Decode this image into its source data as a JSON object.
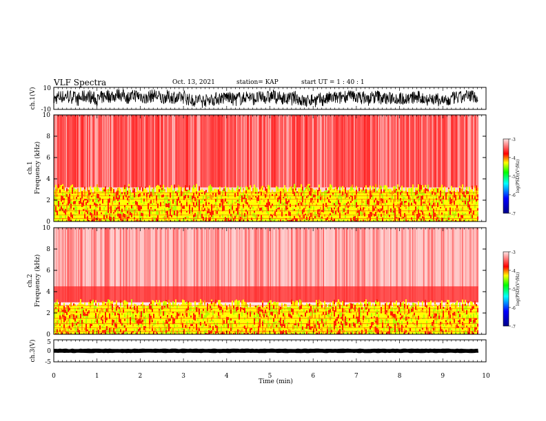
{
  "header": {
    "title": "VLF Spectra",
    "date": "Oct. 13, 2021",
    "station": "station= KAP",
    "start_ut": "start  UT  =   1 : 40 : 1"
  },
  "chart_data": [
    {
      "type": "line",
      "panel": "ch1-waveform",
      "ylabel": "ch.1(V)",
      "ylim": [
        -10,
        10
      ],
      "y_ticks": [
        "10",
        "-10"
      ],
      "xlim": [
        0,
        10
      ],
      "x_extent": [
        0,
        9.82
      ],
      "amplitude_range": [
        -9,
        8
      ]
    },
    {
      "type": "heatmap",
      "panel": "ch1-spectrogram",
      "ylabel_line1": "ch.1",
      "ylabel_line2": "Frequency (kHz)",
      "ylim": [
        0,
        10
      ],
      "y_ticks": [
        "0",
        "2",
        "4",
        "6",
        "8",
        "10"
      ],
      "xlim": [
        0,
        10
      ],
      "x_extent": [
        0,
        9.82
      ],
      "bands": [
        {
          "from_khz": 0,
          "to_khz": 3.2,
          "dominant": "yellow-green"
        },
        {
          "from_khz": 3.2,
          "to_khz": 10,
          "dominant": "red"
        }
      ],
      "colorbar": {
        "label": "log(PSD)(V²/Hz)",
        "ticks": [
          "-3",
          "-4",
          "-5",
          "-6",
          "-7"
        ],
        "range": [
          -7,
          -3
        ]
      }
    },
    {
      "type": "heatmap",
      "panel": "ch2-spectrogram",
      "ylabel_line1": "ch.2",
      "ylabel_line2": "Frequency (kHz)",
      "ylim": [
        0,
        10
      ],
      "y_ticks": [
        "0",
        "2",
        "4",
        "6",
        "8",
        "10"
      ],
      "xlim": [
        0,
        10
      ],
      "x_extent": [
        0,
        9.82
      ],
      "bands": [
        {
          "from_khz": 0,
          "to_khz": 3.0,
          "dominant": "yellow-green"
        },
        {
          "from_khz": 3.0,
          "to_khz": 4.5,
          "dominant": "red"
        },
        {
          "from_khz": 4.5,
          "to_khz": 10,
          "dominant": "pale-red"
        }
      ],
      "colorbar": {
        "label": "log(PSD)(V²/Hz)",
        "ticks": [
          "-3",
          "-4",
          "-5",
          "-6",
          "-7"
        ],
        "range": [
          -7,
          -3
        ]
      }
    },
    {
      "type": "line",
      "panel": "ch3-waveform",
      "ylabel": "ch.3(V)",
      "ylim": [
        -5,
        5
      ],
      "y_ticks": [
        "5",
        "0",
        "-5"
      ],
      "xlim": [
        0,
        10
      ],
      "x_extent": [
        0,
        9.82
      ],
      "level": 0,
      "band_halfwidth": 0.7
    }
  ],
  "x_axis": {
    "label": "Time (min)",
    "ticks": [
      "0",
      "1",
      "2",
      "3",
      "4",
      "5",
      "6",
      "7",
      "8",
      "9",
      "10"
    ]
  },
  "colors": {
    "waveform": "#000000",
    "spec_red": "#ff0000",
    "spec_yellow": "#ffff00",
    "spec_green": "#00ff00",
    "colormap": [
      "#00008a",
      "#0000ff",
      "#00ffff",
      "#00ff00",
      "#ffff00",
      "#ff0000",
      "#ffe6e6"
    ]
  }
}
